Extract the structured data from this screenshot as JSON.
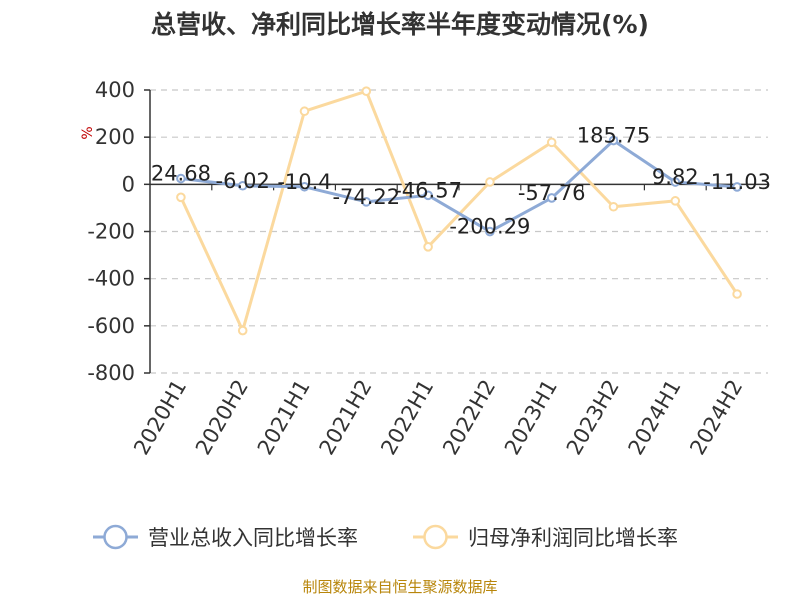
{
  "chart_data": {
    "type": "line",
    "title": "总营收、净利同比增长率半年度变动情况(%)",
    "ylabel": "%",
    "categories": [
      "2020H1",
      "2020H2",
      "2021H1",
      "2021H2",
      "2022H1",
      "2022H2",
      "2023H1",
      "2023H2",
      "2024H1",
      "2024H2"
    ],
    "ylim": [
      -800,
      400
    ],
    "yticks": [
      400,
      200,
      0,
      -200,
      -400,
      -600,
      -800
    ],
    "grid": true,
    "legend_position": "bottom",
    "series": [
      {
        "name": "营业总收入同比增长率",
        "color": "#8eaad6",
        "values": [
          24.68,
          -6.02,
          -10.4,
          -74.22,
          -46.57,
          -200.29,
          -57.76,
          185.75,
          9.82,
          -11.03
        ],
        "labels": [
          "24.68",
          "-6.02",
          "-10.4",
          "-74.22",
          "-46.57",
          "-200.29",
          "-57.76",
          "185.75",
          "9.82",
          "-11.03"
        ]
      },
      {
        "name": "归母净利润同比增长率",
        "color": "#fbd99e",
        "values": [
          -55,
          -620,
          310,
          395,
          -265,
          10,
          178,
          -95,
          -70,
          -465
        ]
      }
    ]
  },
  "footer": {
    "source": "制图数据来自恒生聚源数据库"
  }
}
